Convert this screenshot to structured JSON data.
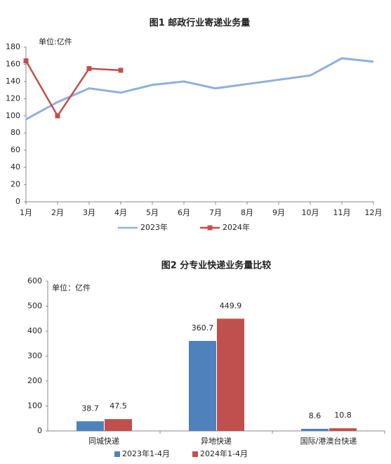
{
  "chart_data": [
    {
      "type": "line",
      "title": "图1   邮政行业寄递业务量",
      "unit": "单位:亿件",
      "categories": [
        "1月",
        "2月",
        "3月",
        "4月",
        "5月",
        "6月",
        "7月",
        "8月",
        "9月",
        "10月",
        "11月",
        "12月"
      ],
      "series": [
        {
          "name": "2023年",
          "color": "#8fb0dc",
          "values": [
            96,
            116,
            132,
            127,
            136,
            140,
            132,
            137,
            142,
            147,
            167,
            163
          ]
        },
        {
          "name": "2024年",
          "color": "#c0504d",
          "values": [
            164,
            100,
            155,
            153,
            null,
            null,
            null,
            null,
            null,
            null,
            null,
            null
          ]
        }
      ],
      "ylim": [
        0,
        180
      ],
      "yticks": [
        0,
        20,
        40,
        60,
        80,
        100,
        120,
        140,
        160,
        180
      ]
    },
    {
      "type": "bar",
      "title": "图2   分专业快递业务量比较",
      "unit": "单位：亿件",
      "categories": [
        "同城快递",
        "异地快递",
        "国际/港澳台快递"
      ],
      "series": [
        {
          "name": "2023年1-4月",
          "color": "#4f81bd",
          "values": [
            38.7,
            360.7,
            8.6
          ]
        },
        {
          "name": "2024年1-4月",
          "color": "#c0504d",
          "values": [
            47.5,
            449.9,
            10.8
          ]
        }
      ],
      "ylim": [
        0,
        600
      ],
      "yticks": [
        0,
        100,
        200,
        300,
        400,
        500,
        600
      ]
    }
  ]
}
